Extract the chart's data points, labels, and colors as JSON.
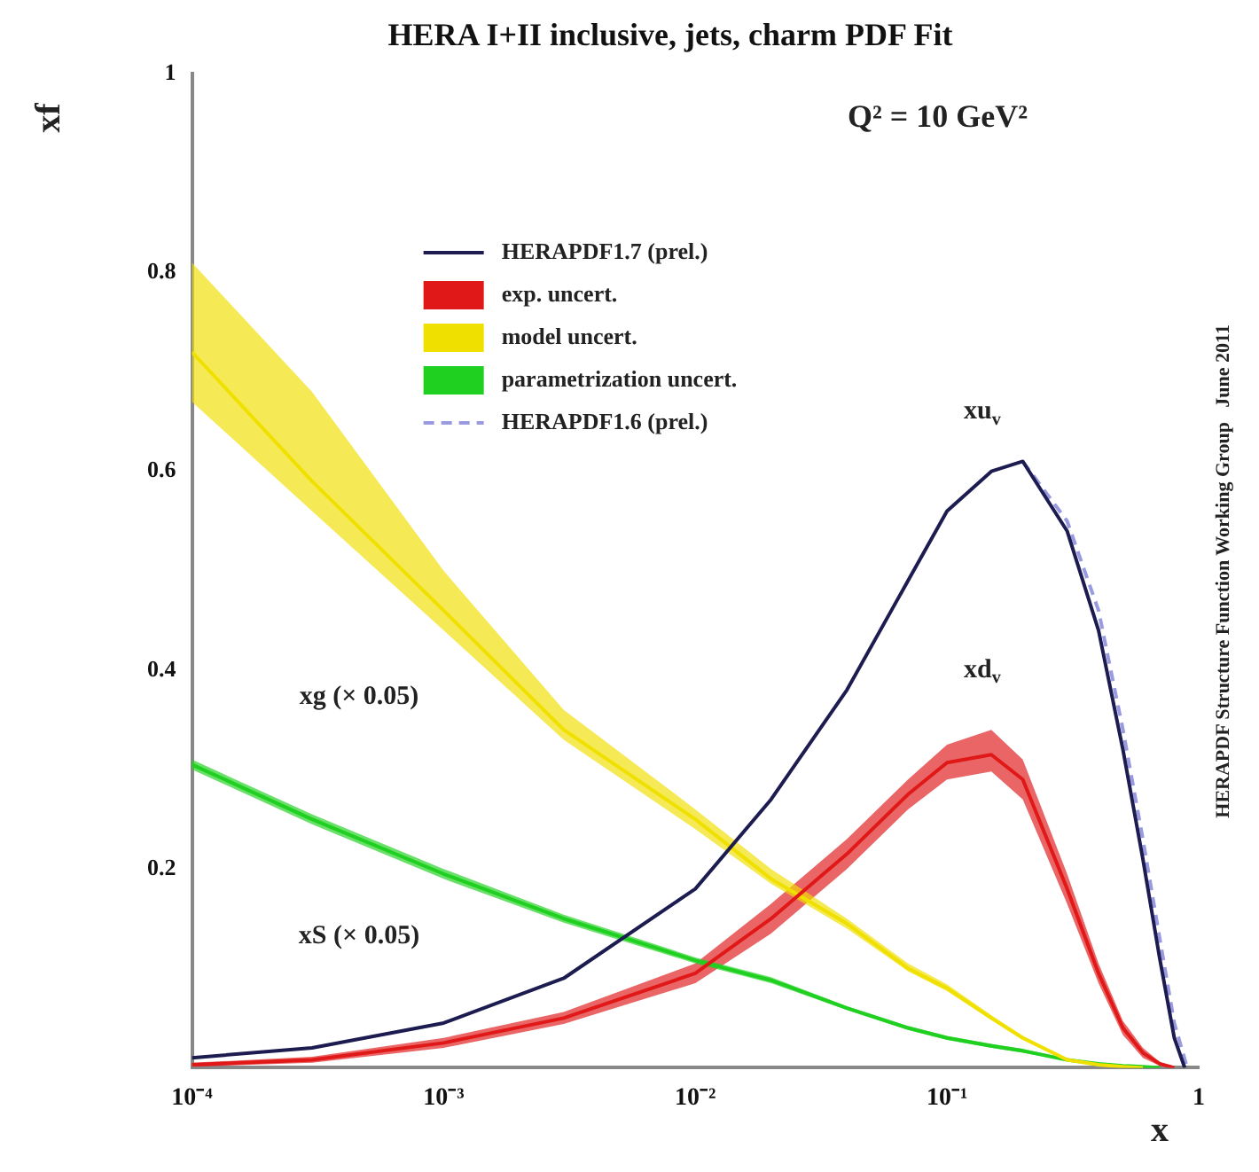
{
  "chart_data": {
    "type": "line",
    "title": "HERA I+II inclusive, jets, charm PDF Fit",
    "xlabel": "x",
    "ylabel": "xf",
    "log": "x",
    "grid": false,
    "legend": "top left",
    "xlim": [
      0.0001,
      1
    ],
    "xticks": [
      {
        "value": 0.0001,
        "label": "10⁻⁴"
      },
      {
        "value": 0.001,
        "label": "10⁻³"
      },
      {
        "value": 0.01,
        "label": "10⁻²"
      },
      {
        "value": 0.1,
        "label": "10⁻¹"
      },
      1
    ],
    "ylim": [
      0,
      1
    ],
    "yticks": [
      0.2,
      0.4,
      0.6,
      0.8,
      1
    ],
    "series": [
      {
        "name": "HERAPDF1.7 (prel.)",
        "color": "#1c1c50",
        "x": [
          0.0001,
          0.0003,
          0.001,
          0.003,
          0.01,
          0.02,
          0.04,
          0.07,
          0.1,
          0.15,
          0.2,
          0.3,
          0.4,
          0.5,
          0.6,
          0.7,
          0.8,
          0.88
        ],
        "values": [
          0.01,
          0.02,
          0.045,
          0.09,
          0.18,
          0.27,
          0.38,
          0.49,
          0.56,
          0.6,
          0.61,
          0.54,
          0.44,
          0.32,
          0.21,
          0.11,
          0.03,
          0.0
        ]
      },
      {
        "name": "exp. uncert.",
        "color": "#e01818",
        "x": [
          0.0001,
          0.0003,
          0.001,
          0.003,
          0.01,
          0.02,
          0.04,
          0.07,
          0.1,
          0.15,
          0.2,
          0.3,
          0.4,
          0.5,
          0.6,
          0.7,
          0.8
        ],
        "values": [
          0.003,
          0.008,
          0.025,
          0.05,
          0.095,
          0.15,
          0.215,
          0.275,
          0.307,
          0.315,
          0.29,
          0.18,
          0.095,
          0.04,
          0.015,
          0.004,
          0.0
        ],
        "lower": [
          0.001,
          0.005,
          0.02,
          0.044,
          0.085,
          0.135,
          0.2,
          0.26,
          0.29,
          0.298,
          0.27,
          0.165,
          0.085,
          0.033,
          0.01,
          0.002,
          0.0
        ],
        "upper": [
          0.005,
          0.011,
          0.03,
          0.056,
          0.105,
          0.165,
          0.23,
          0.29,
          0.325,
          0.34,
          0.31,
          0.195,
          0.105,
          0.047,
          0.02,
          0.006,
          0.0
        ]
      },
      {
        "name": "model uncert.",
        "color": "#f0e000",
        "x": [
          0.0001,
          0.0003,
          0.001,
          0.003,
          0.01,
          0.02,
          0.04,
          0.07,
          0.1,
          0.15,
          0.2,
          0.3,
          0.4,
          0.5,
          0.6
        ],
        "values": [
          0.72,
          0.59,
          0.46,
          0.34,
          0.25,
          0.19,
          0.145,
          0.1,
          0.08,
          0.05,
          0.03,
          0.008,
          0.003,
          0.001,
          0.0
        ],
        "lower": [
          0.67,
          0.56,
          0.44,
          0.33,
          0.24,
          0.185,
          0.14,
          0.097,
          0.077,
          0.048,
          0.028,
          0.007,
          0.002,
          0.0,
          0.0
        ],
        "upper": [
          0.81,
          0.68,
          0.5,
          0.36,
          0.26,
          0.2,
          0.15,
          0.105,
          0.084,
          0.053,
          0.032,
          0.01,
          0.004,
          0.002,
          0.0
        ]
      },
      {
        "name": "parametrization uncert.",
        "color": "#20d020",
        "x": [
          0.0001,
          0.0003,
          0.001,
          0.003,
          0.01,
          0.02,
          0.04,
          0.07,
          0.1,
          0.15,
          0.2,
          0.3,
          0.4,
          0.5,
          0.6,
          0.7
        ],
        "values": [
          0.305,
          0.25,
          0.195,
          0.15,
          0.108,
          0.088,
          0.06,
          0.04,
          0.03,
          0.022,
          0.017,
          0.008,
          0.004,
          0.002,
          0.001,
          0.0
        ],
        "lower": [
          0.3,
          0.245,
          0.19,
          0.146,
          0.105,
          0.085,
          0.058,
          0.038,
          0.028,
          0.02,
          0.015,
          0.007,
          0.003,
          0.001,
          0.0,
          0.0
        ],
        "upper": [
          0.31,
          0.255,
          0.2,
          0.154,
          0.111,
          0.091,
          0.062,
          0.042,
          0.032,
          0.024,
          0.019,
          0.009,
          0.005,
          0.003,
          0.002,
          0.0
        ]
      },
      {
        "name": "HERAPDF1.6 (prel.)",
        "color": "#9a9ae0",
        "line_style": "dashed",
        "x": [
          0.2,
          0.3,
          0.4,
          0.5,
          0.6,
          0.7,
          0.8,
          0.9
        ],
        "values": [
          0.61,
          0.55,
          0.46,
          0.34,
          0.23,
          0.13,
          0.045,
          0.0
        ]
      }
    ],
    "annotations": [
      "Q² = 10 GeV²",
      "HERAPDF Structure Function Working Group   June 2011",
      "xu$_{v}$",
      "xd$_{v}$",
      "xg (× 0.05)",
      "xS (× 0.05)"
    ]
  }
}
